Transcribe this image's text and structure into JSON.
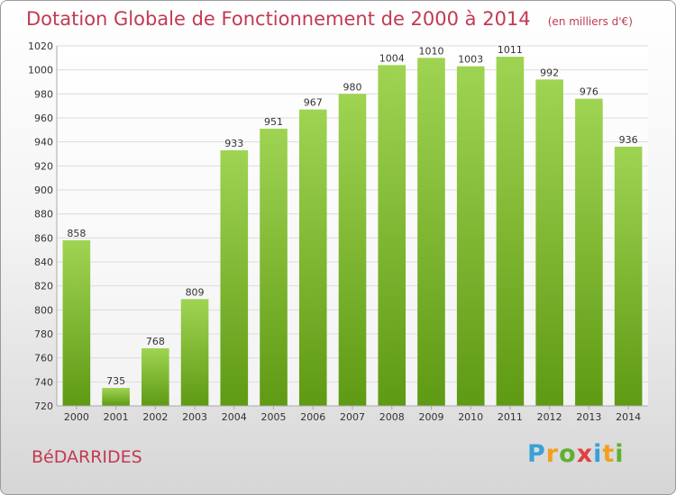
{
  "header": {
    "title": "Dotation Globale de Fonctionnement de 2000 à 2014",
    "unit": "(en milliers d'€)"
  },
  "footer": {
    "commune": "BéDARRIDES",
    "brand_letters": [
      {
        "char": "P",
        "color": "#3aa0d8"
      },
      {
        "char": "r",
        "color": "#f0a020"
      },
      {
        "char": "o",
        "color": "#60b030"
      },
      {
        "char": "x",
        "color": "#e04040"
      },
      {
        "char": "i",
        "color": "#3aa0d8"
      },
      {
        "char": "t",
        "color": "#f0a020"
      },
      {
        "char": "i",
        "color": "#60b030"
      }
    ]
  },
  "colors": {
    "bar_top": "#9fd452",
    "bar_bottom": "#5f9a14",
    "grid": "#dcdcdc",
    "axis_text": "#333333",
    "title": "#c23a52"
  },
  "chart_data": {
    "type": "bar",
    "categories": [
      "2000",
      "2001",
      "2002",
      "2003",
      "2004",
      "2005",
      "2006",
      "2007",
      "2008",
      "2009",
      "2010",
      "2011",
      "2012",
      "2013",
      "2014"
    ],
    "values": [
      858,
      735,
      768,
      809,
      933,
      951,
      967,
      980,
      1004,
      1010,
      1003,
      1011,
      992,
      976,
      936
    ],
    "ylim": [
      720,
      1020
    ],
    "yticks": [
      720,
      740,
      760,
      780,
      800,
      820,
      840,
      860,
      880,
      900,
      920,
      940,
      960,
      980,
      1000,
      1020
    ],
    "grid": true,
    "data_labels": true
  }
}
